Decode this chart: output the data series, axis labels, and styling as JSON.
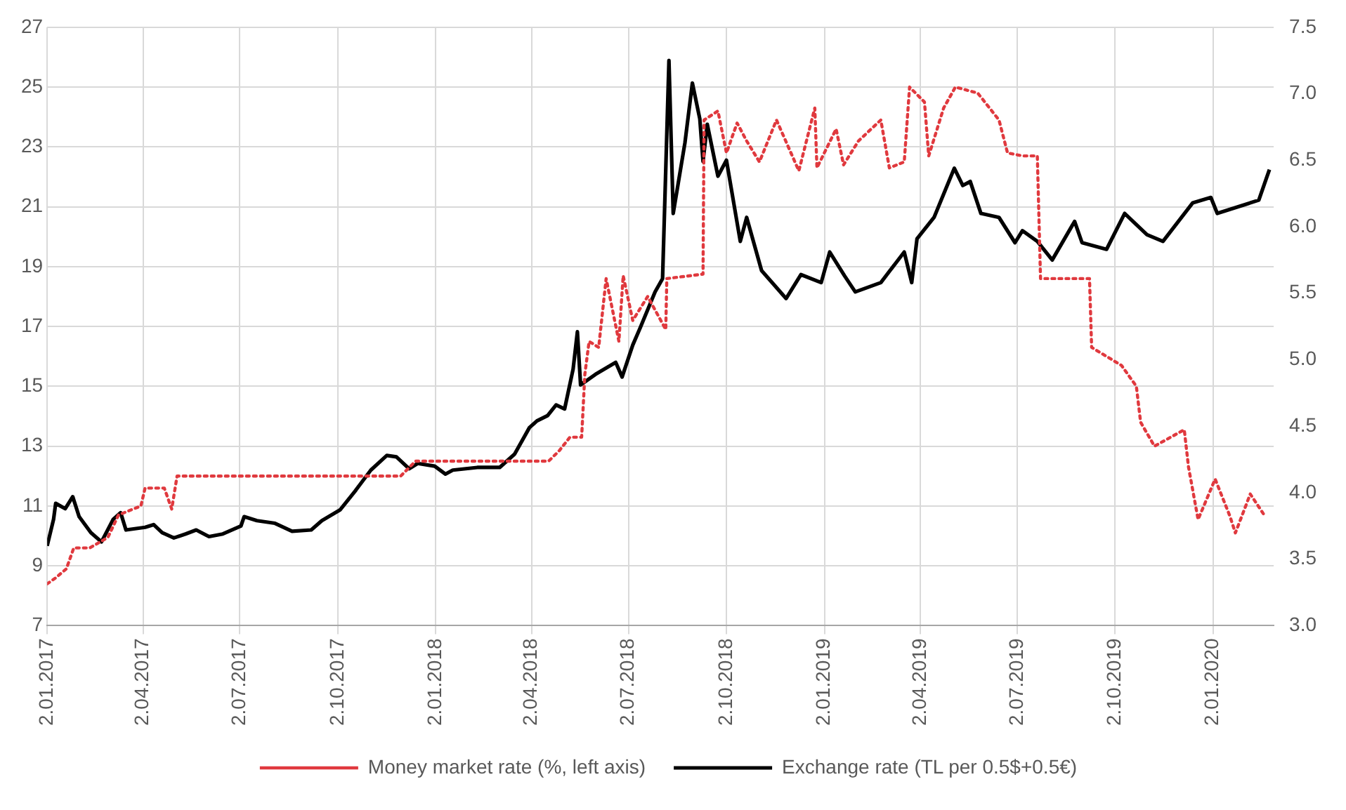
{
  "chart_data": {
    "type": "line",
    "grid": true,
    "legend": "bottom",
    "xlim": [
      "2017-01-02",
      "2020-02-28"
    ],
    "xticks": [
      {
        "value": "2017-01-02",
        "label": "2.01.2017"
      },
      {
        "value": "2017-04-02",
        "label": "2.04.2017"
      },
      {
        "value": "2017-07-02",
        "label": "2.07.2017"
      },
      {
        "value": "2017-10-02",
        "label": "2.10.2017"
      },
      {
        "value": "2018-01-02",
        "label": "2.01.2018"
      },
      {
        "value": "2018-04-02",
        "label": "2.04.2018"
      },
      {
        "value": "2018-07-02",
        "label": "2.07.2018"
      },
      {
        "value": "2018-10-02",
        "label": "2.10.2018"
      },
      {
        "value": "2019-01-02",
        "label": "2.01.2019"
      },
      {
        "value": "2019-04-02",
        "label": "2.04.2019"
      },
      {
        "value": "2019-07-02",
        "label": "2.07.2019"
      },
      {
        "value": "2019-10-02",
        "label": "2.10.2019"
      },
      {
        "value": "2020-01-02",
        "label": "2.01.2020"
      }
    ],
    "ylim": [
      7,
      27
    ],
    "yticks": [
      7,
      9,
      11,
      13,
      15,
      17,
      19,
      21,
      23,
      25,
      27
    ],
    "y2lim": [
      3,
      7.5
    ],
    "y2ticks": [
      {
        "value": 3,
        "label": "3.0"
      },
      {
        "value": 3.5,
        "label": "3.5"
      },
      {
        "value": 4,
        "label": "4.0"
      },
      {
        "value": 4.5,
        "label": "4.5"
      },
      {
        "value": 5,
        "label": "5.0"
      },
      {
        "value": 5.5,
        "label": "5.5"
      },
      {
        "value": 6,
        "label": "6.0"
      },
      {
        "value": 6.5,
        "label": "6.5"
      },
      {
        "value": 7,
        "label": "7.0"
      },
      {
        "value": 7.5,
        "label": "7.5"
      }
    ],
    "series": [
      {
        "name": "Money market rate (%, left axis)",
        "color": "#e0393e",
        "line_style": "dotted",
        "x": [
          "2017-01-02",
          "2017-01-10",
          "2017-01-20",
          "2017-01-27",
          "2017-02-11",
          "2017-02-28",
          "2017-03-10",
          "2017-03-31",
          "2017-04-04",
          "2017-04-22",
          "2017-04-29",
          "2017-05-04",
          "2017-11-30",
          "2017-12-14",
          "2018-04-18",
          "2018-04-28",
          "2018-05-08",
          "2018-05-19",
          "2018-05-22",
          "2018-05-26",
          "2018-06-04",
          "2018-06-11",
          "2018-06-23",
          "2018-06-27",
          "2018-07-06",
          "2018-07-20",
          "2018-08-06",
          "2018-08-07",
          "2018-09-10",
          "2018-09-11",
          "2018-09-24",
          "2018-10-02",
          "2018-10-12",
          "2018-10-21",
          "2018-11-02",
          "2018-11-18",
          "2018-12-09",
          "2018-12-24",
          "2018-12-26",
          "2019-01-13",
          "2019-01-20",
          "2019-02-03",
          "2019-02-24",
          "2019-03-04",
          "2019-03-18",
          "2019-03-23",
          "2019-04-06",
          "2019-04-10",
          "2019-04-24",
          "2019-05-05",
          "2019-05-26",
          "2019-06-15",
          "2019-06-23",
          "2019-07-07",
          "2019-07-21",
          "2019-07-24",
          "2019-09-08",
          "2019-09-10",
          "2019-10-08",
          "2019-10-22",
          "2019-10-26",
          "2019-11-08",
          "2019-12-06",
          "2019-12-10",
          "2019-12-19",
          "2020-01-04",
          "2020-01-18",
          "2020-01-23",
          "2020-02-06",
          "2020-02-20"
        ],
        "values": [
          8.4,
          8.6,
          8.9,
          9.6,
          9.6,
          9.95,
          10.7,
          11.0,
          11.6,
          11.6,
          10.9,
          12.0,
          12.0,
          12.5,
          12.5,
          12.85,
          13.3,
          13.3,
          15.4,
          16.5,
          16.3,
          18.6,
          16.5,
          18.7,
          17.2,
          18.0,
          16.9,
          18.6,
          18.75,
          23.9,
          24.2,
          22.8,
          23.8,
          23.2,
          22.5,
          23.9,
          22.2,
          24.3,
          22.3,
          23.6,
          22.4,
          23.2,
          23.9,
          22.3,
          22.5,
          25.0,
          24.5,
          22.7,
          24.3,
          25.0,
          24.8,
          23.9,
          22.8,
          22.7,
          22.7,
          18.6,
          18.6,
          16.3,
          15.7,
          15.0,
          13.8,
          13.0,
          13.55,
          12.3,
          10.55,
          11.9,
          10.65,
          10.1,
          11.4,
          10.65
        ]
      },
      {
        "name": "Exchange rate (TL per 0.5$+0.5€)",
        "color": "#000000",
        "line_style": "solid",
        "axis": "y2",
        "x": [
          "2017-01-02",
          "2017-01-08",
          "2017-01-10",
          "2017-01-19",
          "2017-01-26",
          "2017-02-01",
          "2017-02-12",
          "2017-02-22",
          "2017-03-05",
          "2017-03-12",
          "2017-03-17",
          "2017-04-04",
          "2017-04-12",
          "2017-04-20",
          "2017-05-01",
          "2017-05-12",
          "2017-05-22",
          "2017-06-03",
          "2017-06-16",
          "2017-07-03",
          "2017-07-06",
          "2017-07-18",
          "2017-08-04",
          "2017-08-20",
          "2017-09-07",
          "2017-09-17",
          "2017-10-04",
          "2017-10-18",
          "2017-11-02",
          "2017-11-17",
          "2017-11-26",
          "2017-12-08",
          "2017-12-16",
          "2018-01-01",
          "2018-01-11",
          "2018-01-18",
          "2018-02-10",
          "2018-03-03",
          "2018-03-17",
          "2018-03-31",
          "2018-04-07",
          "2018-04-17",
          "2018-04-25",
          "2018-05-03",
          "2018-05-11",
          "2018-05-15",
          "2018-05-18",
          "2018-06-01",
          "2018-06-20",
          "2018-06-26",
          "2018-07-06",
          "2018-07-13",
          "2018-07-27",
          "2018-08-03",
          "2018-08-09",
          "2018-08-13",
          "2018-08-24",
          "2018-08-31",
          "2018-09-07",
          "2018-09-10",
          "2018-09-14",
          "2018-09-24",
          "2018-10-02",
          "2018-10-15",
          "2018-10-21",
          "2018-11-04",
          "2018-11-27",
          "2018-12-11",
          "2018-12-30",
          "2019-01-07",
          "2019-01-21",
          "2019-01-31",
          "2019-02-24",
          "2019-03-18",
          "2019-03-25",
          "2019-03-30",
          "2019-04-15",
          "2019-05-04",
          "2019-05-12",
          "2019-05-19",
          "2019-05-29",
          "2019-06-15",
          "2019-06-30",
          "2019-07-07",
          "2019-07-21",
          "2019-08-04",
          "2019-08-25",
          "2019-09-01",
          "2019-09-24",
          "2019-10-11",
          "2019-11-01",
          "2019-11-16",
          "2019-12-14",
          "2019-12-31",
          "2020-01-06",
          "2020-02-14",
          "2020-02-24"
        ],
        "values": [
          3.6,
          3.8,
          3.92,
          3.88,
          3.97,
          3.82,
          3.7,
          3.63,
          3.8,
          3.85,
          3.72,
          3.74,
          3.76,
          3.7,
          3.66,
          3.69,
          3.72,
          3.67,
          3.69,
          3.75,
          3.82,
          3.79,
          3.77,
          3.71,
          3.72,
          3.79,
          3.87,
          4.01,
          4.17,
          4.28,
          4.27,
          4.18,
          4.22,
          4.2,
          4.14,
          4.17,
          4.19,
          4.19,
          4.29,
          4.49,
          4.54,
          4.58,
          4.66,
          4.63,
          4.93,
          5.21,
          4.81,
          4.89,
          4.98,
          4.87,
          5.11,
          5.24,
          5.51,
          5.61,
          7.25,
          6.1,
          6.63,
          7.08,
          6.81,
          6.49,
          6.77,
          6.38,
          6.5,
          5.89,
          6.07,
          5.67,
          5.46,
          5.64,
          5.58,
          5.81,
          5.63,
          5.51,
          5.58,
          5.81,
          5.58,
          5.91,
          6.07,
          6.44,
          6.31,
          6.34,
          6.1,
          6.07,
          5.88,
          5.97,
          5.89,
          5.75,
          6.04,
          5.88,
          5.83,
          6.1,
          5.94,
          5.89,
          6.18,
          6.22,
          6.1,
          6.2,
          6.43
        ]
      }
    ]
  }
}
